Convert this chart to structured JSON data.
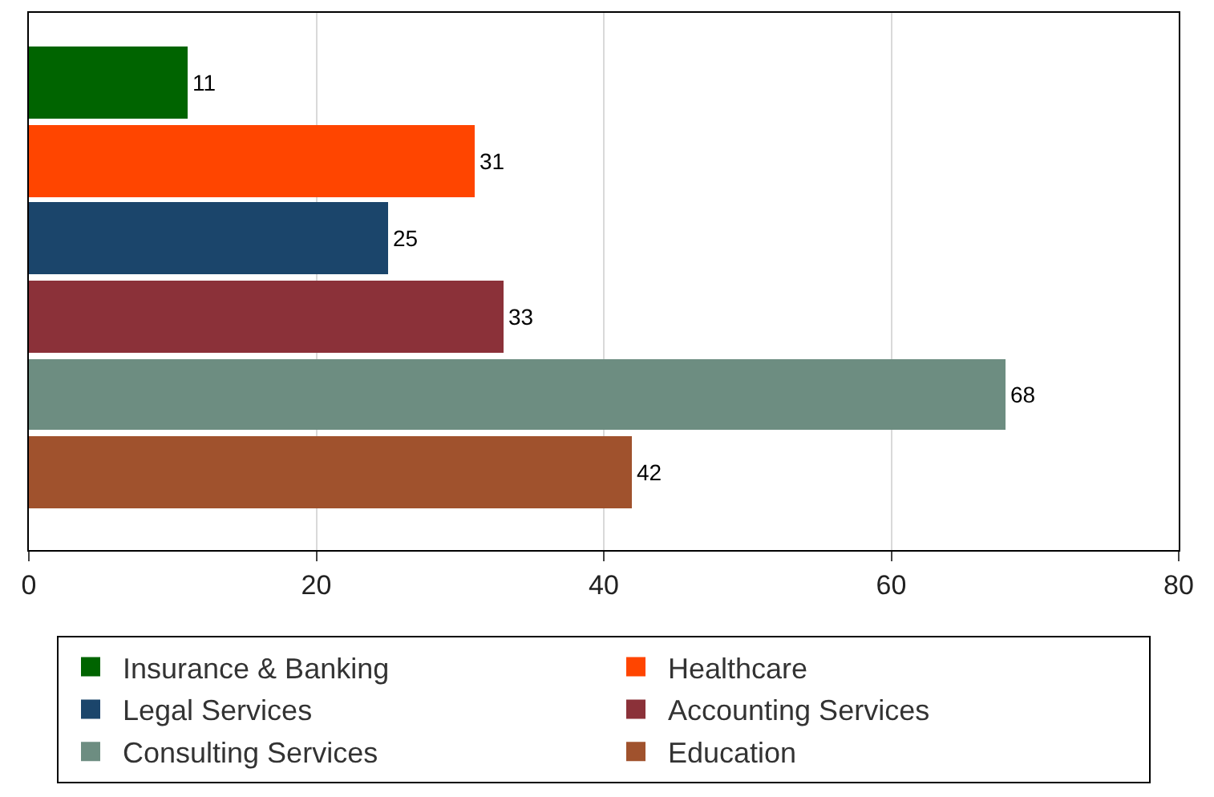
{
  "chart_data": {
    "type": "bar",
    "orientation": "horizontal",
    "categories": [
      null,
      null,
      null,
      null,
      null,
      null
    ],
    "series": [
      {
        "name": "Insurance & Banking",
        "color": "#006400",
        "values": [
          11,
          null,
          null,
          null,
          null,
          null
        ]
      },
      {
        "name": "Healthcare",
        "color": "#ff4500",
        "values": [
          null,
          31,
          null,
          null,
          null,
          null
        ]
      },
      {
        "name": "Legal Services",
        "color": "#1b456b",
        "values": [
          null,
          null,
          25,
          null,
          null,
          null
        ]
      },
      {
        "name": "Accounting Services",
        "color": "#8b3139",
        "values": [
          null,
          null,
          null,
          33,
          null,
          null
        ]
      },
      {
        "name": "Consulting Services",
        "color": "#6d8d81",
        "values": [
          null,
          null,
          null,
          null,
          68,
          null
        ]
      },
      {
        "name": "Education",
        "color": "#a0522d",
        "values": [
          null,
          null,
          null,
          null,
          null,
          42
        ]
      }
    ],
    "xlim": [
      0,
      80
    ],
    "xticks": [
      0,
      20,
      40,
      60,
      80
    ],
    "grid": "x",
    "legend": "bottom",
    "data_labels": true,
    "tick_labels": "x"
  }
}
